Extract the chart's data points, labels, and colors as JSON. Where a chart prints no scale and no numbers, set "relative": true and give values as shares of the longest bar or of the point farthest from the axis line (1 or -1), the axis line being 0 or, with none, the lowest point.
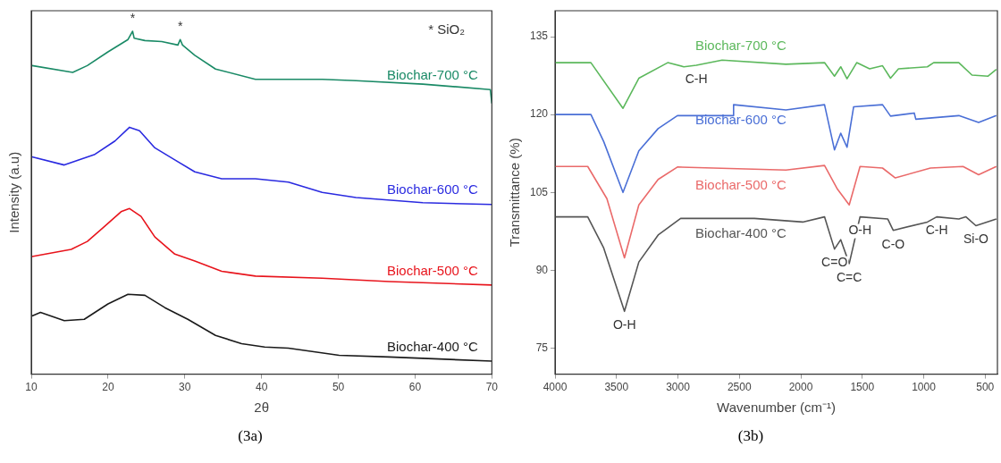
{
  "chart_data": [
    {
      "type": "line",
      "relative": true,
      "xlabel": "2θ",
      "ylabel": "Intensity (a.u)",
      "xlim": [
        10,
        70
      ],
      "xticks": [
        10,
        20,
        30,
        40,
        50,
        60,
        70
      ],
      "grid": false,
      "legend": false,
      "marker": "none",
      "series": [
        {
          "name": "Biochar-700 °C",
          "color": "#1a8a66",
          "x": [
            10.1,
            15.4,
            17.3,
            20,
            22.6,
            23.2,
            23.4,
            24.8,
            27,
            29.1,
            29.4,
            29.7,
            31.3,
            34,
            39.2,
            47.9,
            52.3,
            61,
            69.8,
            70
          ],
          "values": [
            0.9,
            0.88,
            0.9,
            0.94,
            0.976,
            1.0,
            0.98,
            0.973,
            0.97,
            0.96,
            0.976,
            0.96,
            0.93,
            0.89,
            0.86,
            0.86,
            0.856,
            0.846,
            0.83,
            0.79
          ]
        },
        {
          "name": "Biochar-600 °C",
          "color": "#2a2ae0",
          "x": [
            10.1,
            14.3,
            18.2,
            20.9,
            22.8,
            24.1,
            26.1,
            28.7,
            31.3,
            34.8,
            39.2,
            43.5,
            47.9,
            52.3,
            61,
            70
          ],
          "values": [
            0.634,
            0.61,
            0.64,
            0.68,
            0.72,
            0.71,
            0.66,
            0.625,
            0.59,
            0.57,
            0.57,
            0.56,
            0.53,
            0.515,
            0.5,
            0.495
          ]
        },
        {
          "name": "Biochar-500 °C",
          "color": "#e8141c",
          "x": [
            10.1,
            15.2,
            17.3,
            19.5,
            21.7,
            22.8,
            24.3,
            26.1,
            28.7,
            31.3,
            34.8,
            39.2,
            47.9,
            56.6,
            70
          ],
          "values": [
            0.343,
            0.364,
            0.387,
            0.43,
            0.474,
            0.483,
            0.46,
            0.4,
            0.35,
            0.33,
            0.3,
            0.286,
            0.28,
            0.27,
            0.26
          ]
        },
        {
          "name": "Biochar-400 °C",
          "color": "#1a1a1a",
          "x": [
            10.1,
            11.2,
            14.3,
            16.9,
            20,
            22.6,
            24.8,
            27.4,
            30.4,
            34,
            37.4,
            40.4,
            43.5,
            50.1,
            56.6,
            70
          ],
          "values": [
            0.17,
            0.18,
            0.156,
            0.16,
            0.205,
            0.233,
            0.23,
            0.194,
            0.16,
            0.113,
            0.089,
            0.079,
            0.076,
            0.055,
            0.05,
            0.038
          ]
        }
      ],
      "annotations": [
        {
          "text": "*",
          "x": 23.2,
          "y": 1.0
        },
        {
          "text": "*",
          "x": 29.4,
          "y": 0.976
        },
        "* SiO₂",
        "(3a)"
      ]
    },
    {
      "type": "line",
      "xlabel": "Wavenumber (cm⁻¹)",
      "ylabel": "Transmittance (%)",
      "xlim": [
        4000,
        400
      ],
      "xticks": [
        4000,
        3500,
        3000,
        2500,
        2000,
        1500,
        1000,
        500
      ],
      "ylim": [
        70,
        140
      ],
      "yticks": [
        75,
        90,
        105,
        120,
        135
      ],
      "grid": false,
      "legend": false,
      "marker": "none",
      "series": [
        {
          "name": "Biochar-700 °C",
          "color": "#5cb85c",
          "x": [
            4000,
            3708,
            3447,
            3318,
            3083,
            2952,
            2850,
            2640,
            2121,
            1807,
            1726,
            1675,
            1624,
            1545,
            1440,
            1335,
            1270,
            1205,
            970,
            919,
            714,
            607,
            476,
            409
          ],
          "values": [
            130,
            130,
            121.2,
            127,
            130,
            129.2,
            129.5,
            130.5,
            129.7,
            130,
            127.4,
            129.2,
            126.9,
            130,
            128.8,
            129.4,
            127,
            128.8,
            129.2,
            130,
            130,
            127.6,
            127.4,
            128.7
          ]
        },
        {
          "name": "Biochar-600 °C",
          "color": "#4a6fd6",
          "x": [
            4000,
            3708,
            3604,
            3447,
            3318,
            3161,
            3004,
            2548,
            2547,
            2121,
            1807,
            1726,
            1675,
            1624,
            1570,
            1335,
            1270,
            1077,
            1064,
            714,
            553,
            409
          ],
          "values": [
            120,
            120,
            114.8,
            105,
            113,
            117.3,
            119.8,
            119.8,
            121.9,
            120.9,
            121.9,
            113.2,
            116.4,
            113.7,
            121.5,
            121.9,
            119.7,
            120.3,
            119.1,
            119.8,
            118.5,
            119.8
          ]
        },
        {
          "name": "Biochar-500 °C",
          "color": "#ea6a6a",
          "x": [
            4000,
            3734,
            3578,
            3435,
            3318,
            3161,
            3004,
            2121,
            1807,
            1701,
            1606,
            1518,
            1335,
            1231,
            945,
            680,
            553,
            409
          ],
          "values": [
            110,
            110,
            103.8,
            92.4,
            102.6,
            107.5,
            109.9,
            109.3,
            110.2,
            105.6,
            102.6,
            110,
            109.7,
            107.8,
            109.7,
            110,
            108.4,
            110
          ]
        },
        {
          "name": "Biochar-400 °C",
          "color": "#555555",
          "x": [
            4000,
            3734,
            3604,
            3435,
            3318,
            3161,
            2978,
            2378,
            1985,
            1807,
            1726,
            1675,
            1606,
            1518,
            1293,
            1248,
            970,
            894,
            714,
            656,
            575,
            409
          ],
          "values": [
            100.3,
            100.3,
            94.3,
            82.1,
            91.6,
            96.8,
            100,
            100,
            99.3,
            100.3,
            94.1,
            95.9,
            91.3,
            100.3,
            99.9,
            97.7,
            99.3,
            100.3,
            99.9,
            100.3,
            98.6,
            99.9
          ]
        }
      ],
      "annotations": [
        {
          "text": "C-H",
          "x": 2850,
          "y": 129.5
        },
        {
          "text": "O-H",
          "x": 3435,
          "y": 82.1
        },
        {
          "text": "C=O",
          "x": 1726,
          "y": 94.1
        },
        {
          "text": "C=C",
          "x": 1606,
          "y": 91.3
        },
        {
          "text": "O-H",
          "x": 1518,
          "y": 100.3
        },
        {
          "text": "C-O",
          "x": 1248,
          "y": 97.7
        },
        {
          "text": "C-H",
          "x": 894,
          "y": 100.3
        },
        {
          "text": "Si-O",
          "x": 575,
          "y": 98.6
        },
        "(3b)"
      ]
    }
  ]
}
